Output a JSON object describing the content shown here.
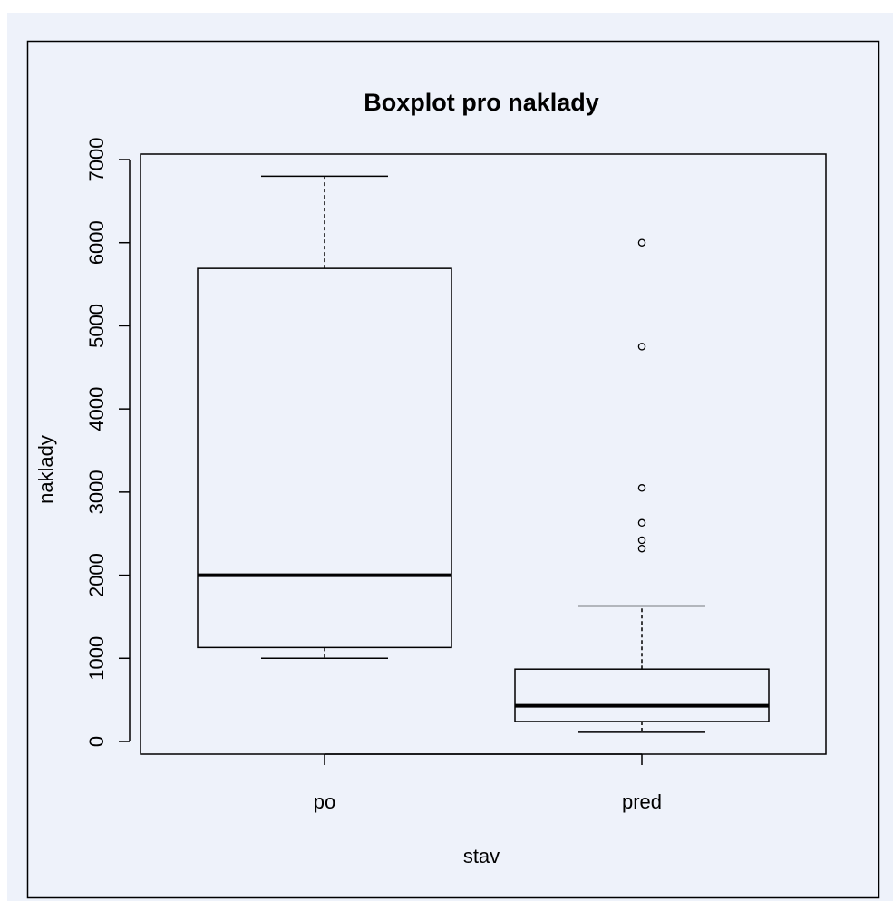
{
  "chart_data": {
    "type": "box",
    "title": "Boxplot pro naklady",
    "xlabel": "stav",
    "ylabel": "naklady",
    "categories": [
      "po",
      "pred"
    ],
    "ylim": [
      0,
      7000
    ],
    "yticks": [
      "0",
      "1000",
      "2000",
      "3000",
      "4000",
      "5000",
      "6000",
      "7000"
    ],
    "boxes": [
      {
        "name": "po",
        "whisker_low": 1000,
        "q1": 1130,
        "median": 2000,
        "q3": 5690,
        "whisker_high": 6800,
        "outliers": []
      },
      {
        "name": "pred",
        "whisker_low": 110,
        "q1": 240,
        "median": 430,
        "q3": 870,
        "whisker_high": 1630,
        "outliers": [
          2320,
          2420,
          2630,
          3050,
          4750,
          6000
        ]
      }
    ],
    "colors": {
      "background": "#eef2fa",
      "stroke": "#000000"
    }
  }
}
